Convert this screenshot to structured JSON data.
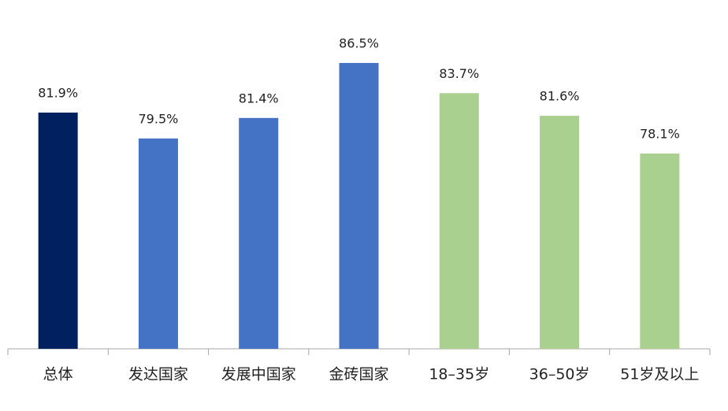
{
  "chart_data": {
    "type": "bar",
    "categories": [
      "总体",
      "发达国家",
      "发展中国家",
      "金砖国家",
      "18–35岁",
      "36–50岁",
      "51岁及以上"
    ],
    "values": [
      81.9,
      79.5,
      81.4,
      86.5,
      83.7,
      81.6,
      78.1
    ],
    "value_labels": [
      "81.9%",
      "79.5%",
      "81.4%",
      "86.5%",
      "83.7%",
      "81.6%",
      "78.1%"
    ],
    "colors": [
      "#002060",
      "#4472c4",
      "#4472c4",
      "#4472c4",
      "#a9d08e",
      "#a9d08e",
      "#a9d08e"
    ],
    "ylim": [
      60,
      90
    ]
  }
}
